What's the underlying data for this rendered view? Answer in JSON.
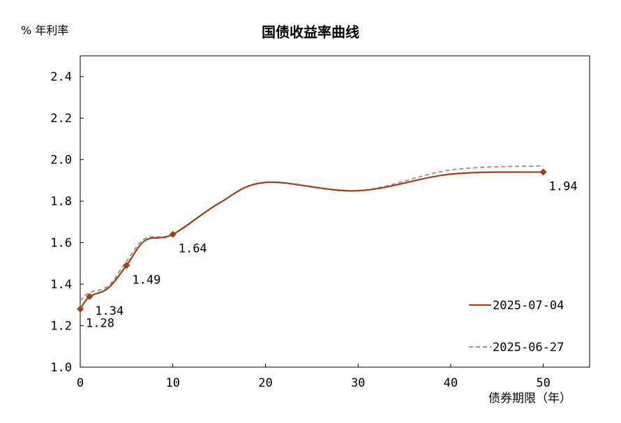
{
  "chart_data": {
    "type": "line",
    "title": "国债收益率曲线",
    "ylabel": "% 年利率",
    "xlabel": "债券期限（年）",
    "xlim": [
      0,
      55
    ],
    "ylim": [
      1.0,
      2.5
    ],
    "xticks": [
      0,
      10,
      20,
      30,
      40,
      50
    ],
    "yticks": [
      1.0,
      1.2,
      1.4,
      1.6,
      1.8,
      2.0,
      2.2,
      2.4
    ],
    "grid": false,
    "legend_position": "bottom-right",
    "series": [
      {
        "name": "2025-07-04",
        "color": "#a0400f",
        "style": "solid",
        "markers": true,
        "x": [
          0,
          1,
          3,
          5,
          7,
          10,
          15,
          20,
          30,
          40,
          50
        ],
        "y": [
          1.28,
          1.34,
          1.38,
          1.49,
          1.61,
          1.64,
          1.79,
          1.89,
          1.85,
          1.93,
          1.94
        ],
        "marked_x": [
          0,
          1,
          5,
          10,
          50
        ],
        "labels": [
          {
            "x": 0,
            "y": 1.28,
            "text": "1.28"
          },
          {
            "x": 1,
            "y": 1.34,
            "text": "1.34"
          },
          {
            "x": 5,
            "y": 1.49,
            "text": "1.49"
          },
          {
            "x": 10,
            "y": 1.64,
            "text": "1.64"
          },
          {
            "x": 50,
            "y": 1.94,
            "text": "1.94"
          }
        ]
      },
      {
        "name": "2025-06-27",
        "color": "#999999",
        "style": "dashed",
        "markers": false,
        "x": [
          0,
          1,
          3,
          5,
          7,
          10,
          15,
          20,
          30,
          40,
          50
        ],
        "y": [
          1.32,
          1.36,
          1.39,
          1.51,
          1.62,
          1.64,
          1.79,
          1.89,
          1.85,
          1.95,
          1.97
        ]
      }
    ]
  }
}
